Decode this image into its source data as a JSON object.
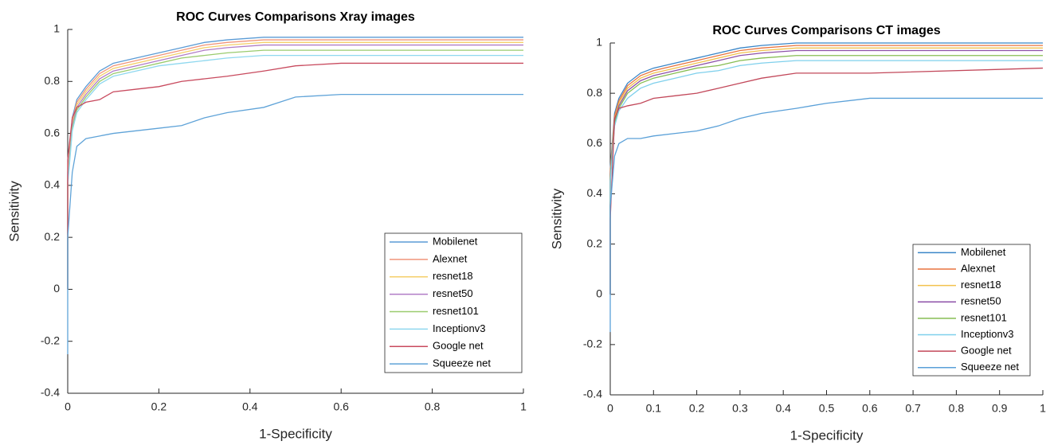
{
  "chart_data": [
    {
      "type": "line",
      "title": "ROC Curves Comparisons Xray images",
      "x_label": "1-Specificity",
      "y_label": "Sensitivity",
      "xlim": [
        0,
        1
      ],
      "ylim": [
        -0.4,
        1
      ],
      "xticks": [
        0,
        0.2,
        0.4,
        0.6,
        0.8,
        1
      ],
      "yticks": [
        -0.4,
        -0.2,
        0,
        0.2,
        0.4,
        0.6,
        0.8,
        1
      ],
      "legend": "lower right",
      "x": [
        0,
        0,
        0.01,
        0.02,
        0.04,
        0.07,
        0.1,
        0.15,
        0.2,
        0.25,
        0.3,
        0.35,
        0.43,
        0.5,
        0.6,
        1
      ],
      "series": [
        {
          "name": "Mobilenet",
          "color": "#5b9bd5",
          "values": [
            0,
            0.45,
            0.66,
            0.73,
            0.78,
            0.84,
            0.87,
            0.89,
            0.91,
            0.93,
            0.95,
            0.96,
            0.97,
            0.97,
            0.97,
            0.97
          ]
        },
        {
          "name": "Alexnet",
          "color": "#f0957a",
          "values": [
            0,
            0.44,
            0.65,
            0.72,
            0.77,
            0.83,
            0.86,
            0.88,
            0.9,
            0.92,
            0.94,
            0.95,
            0.96,
            0.96,
            0.96,
            0.96
          ]
        },
        {
          "name": "resnet18",
          "color": "#f5cf6a",
          "values": [
            0,
            0.43,
            0.64,
            0.71,
            0.76,
            0.82,
            0.85,
            0.87,
            0.89,
            0.91,
            0.93,
            0.94,
            0.95,
            0.95,
            0.95,
            0.95
          ]
        },
        {
          "name": "resnet50",
          "color": "#b07cc6",
          "values": [
            0,
            0.42,
            0.63,
            0.7,
            0.75,
            0.81,
            0.84,
            0.86,
            0.88,
            0.9,
            0.92,
            0.93,
            0.94,
            0.94,
            0.94,
            0.94
          ]
        },
        {
          "name": "resnet101",
          "color": "#9acb6e",
          "values": [
            0,
            0.41,
            0.62,
            0.69,
            0.74,
            0.8,
            0.83,
            0.85,
            0.87,
            0.89,
            0.9,
            0.91,
            0.92,
            0.92,
            0.92,
            0.92
          ]
        },
        {
          "name": "Inceptionv3",
          "color": "#8fd8ef",
          "values": [
            0,
            0.4,
            0.61,
            0.68,
            0.73,
            0.79,
            0.82,
            0.84,
            0.86,
            0.87,
            0.88,
            0.89,
            0.9,
            0.9,
            0.9,
            0.9
          ]
        },
        {
          "name": "Google net",
          "color": "#c84a5e",
          "values": [
            0,
            0.5,
            0.66,
            0.7,
            0.72,
            0.73,
            0.76,
            0.77,
            0.78,
            0.8,
            0.81,
            0.82,
            0.84,
            0.86,
            0.87,
            0.87
          ]
        },
        {
          "name": "Squeeze net",
          "color": "#5fa3d8",
          "values": [
            -0.25,
            0.2,
            0.45,
            0.55,
            0.58,
            0.59,
            0.6,
            0.61,
            0.62,
            0.63,
            0.66,
            0.68,
            0.7,
            0.74,
            0.75,
            0.75
          ]
        }
      ]
    },
    {
      "type": "line",
      "title": "ROC Curves Comparisons CT images",
      "x_label": "1-Specificity",
      "y_label": "Sensitivity",
      "xlim": [
        0,
        1
      ],
      "ylim": [
        -0.4,
        1
      ],
      "xticks": [
        0,
        0.1,
        0.2,
        0.3,
        0.4,
        0.5,
        0.6,
        0.7,
        0.8,
        0.9,
        1
      ],
      "yticks": [
        -0.4,
        -0.2,
        0,
        0.2,
        0.4,
        0.6,
        0.8,
        1
      ],
      "legend": "lower right",
      "x": [
        0,
        0,
        0.01,
        0.02,
        0.04,
        0.07,
        0.1,
        0.15,
        0.2,
        0.25,
        0.3,
        0.35,
        0.43,
        0.5,
        0.6,
        1
      ],
      "series": [
        {
          "name": "Mobilenet",
          "color": "#3a86c8",
          "values": [
            0,
            0.5,
            0.72,
            0.78,
            0.84,
            0.88,
            0.9,
            0.92,
            0.94,
            0.96,
            0.98,
            0.99,
            1,
            1,
            1,
            1
          ]
        },
        {
          "name": "Alexnet",
          "color": "#e8743f",
          "values": [
            0,
            0.49,
            0.71,
            0.77,
            0.83,
            0.87,
            0.89,
            0.91,
            0.93,
            0.95,
            0.97,
            0.98,
            0.99,
            0.99,
            0.99,
            0.99
          ]
        },
        {
          "name": "resnet18",
          "color": "#f2c14e",
          "values": [
            0,
            0.48,
            0.7,
            0.76,
            0.82,
            0.86,
            0.88,
            0.9,
            0.92,
            0.94,
            0.96,
            0.97,
            0.98,
            0.98,
            0.98,
            0.98
          ]
        },
        {
          "name": "resnet50",
          "color": "#8e52a8",
          "values": [
            0,
            0.47,
            0.69,
            0.75,
            0.81,
            0.85,
            0.87,
            0.89,
            0.91,
            0.93,
            0.95,
            0.96,
            0.97,
            0.97,
            0.97,
            0.97
          ]
        },
        {
          "name": "resnet101",
          "color": "#86bd52",
          "values": [
            0,
            0.46,
            0.68,
            0.74,
            0.8,
            0.84,
            0.86,
            0.88,
            0.9,
            0.91,
            0.93,
            0.94,
            0.95,
            0.95,
            0.95,
            0.95
          ]
        },
        {
          "name": "Inceptionv3",
          "color": "#7fd0ec",
          "values": [
            0,
            0.45,
            0.67,
            0.73,
            0.78,
            0.82,
            0.84,
            0.86,
            0.88,
            0.89,
            0.91,
            0.92,
            0.93,
            0.93,
            0.93,
            0.93
          ]
        },
        {
          "name": "Google net",
          "color": "#c2485a",
          "values": [
            0,
            0.3,
            0.7,
            0.74,
            0.75,
            0.76,
            0.78,
            0.79,
            0.8,
            0.82,
            0.84,
            0.86,
            0.88,
            0.88,
            0.88,
            0.9
          ]
        },
        {
          "name": "Squeeze net",
          "color": "#5aa0d8",
          "values": [
            -0.15,
            0.35,
            0.55,
            0.6,
            0.62,
            0.62,
            0.63,
            0.64,
            0.65,
            0.67,
            0.7,
            0.72,
            0.74,
            0.76,
            0.78,
            0.78
          ]
        }
      ]
    }
  ]
}
